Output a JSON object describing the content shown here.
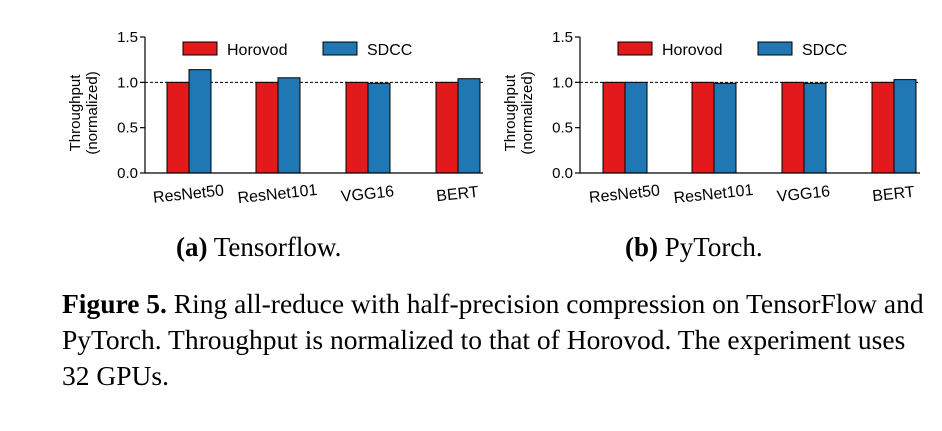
{
  "colors": {
    "horovod": "#e31a1c",
    "sdcc": "#1f78b4"
  },
  "chart_data": [
    {
      "type": "bar",
      "id": "a",
      "categories": [
        "ResNet50",
        "ResNet101",
        "VGG16",
        "BERT"
      ],
      "series": [
        {
          "name": "Horovod",
          "values": [
            1.0,
            1.0,
            1.0,
            1.0
          ]
        },
        {
          "name": "SDCC",
          "values": [
            1.14,
            1.05,
            0.99,
            1.04
          ]
        }
      ],
      "ylabel": [
        "Throughput",
        "(normalized)"
      ],
      "ylim": [
        0,
        1.5
      ],
      "yticks": [
        "0.0",
        "0.5",
        "1.0",
        "1.5"
      ],
      "reference_line": 1.0,
      "legend": "top"
    },
    {
      "type": "bar",
      "id": "b",
      "categories": [
        "ResNet50",
        "ResNet101",
        "VGG16",
        "BERT"
      ],
      "series": [
        {
          "name": "Horovod",
          "values": [
            1.0,
            1.0,
            1.0,
            1.0
          ]
        },
        {
          "name": "SDCC",
          "values": [
            1.0,
            0.99,
            0.99,
            1.03
          ]
        }
      ],
      "ylabel": [
        "Throughput",
        "(normalized)"
      ],
      "ylim": [
        0,
        1.5
      ],
      "yticks": [
        "0.0",
        "0.5",
        "1.0",
        "1.5"
      ],
      "reference_line": 1.0,
      "legend": "top"
    }
  ],
  "subcaptions": {
    "a": {
      "label": "(a)",
      "text": " Tensorflow."
    },
    "b": {
      "label": "(b)",
      "text": " PyTorch."
    }
  },
  "caption": {
    "label": "Figure 5.",
    "text": " Ring all-reduce with half-precision compression on TensorFlow and PyTorch. Throughput is normalized to that of Horovod. The experiment uses 32 GPUs."
  }
}
